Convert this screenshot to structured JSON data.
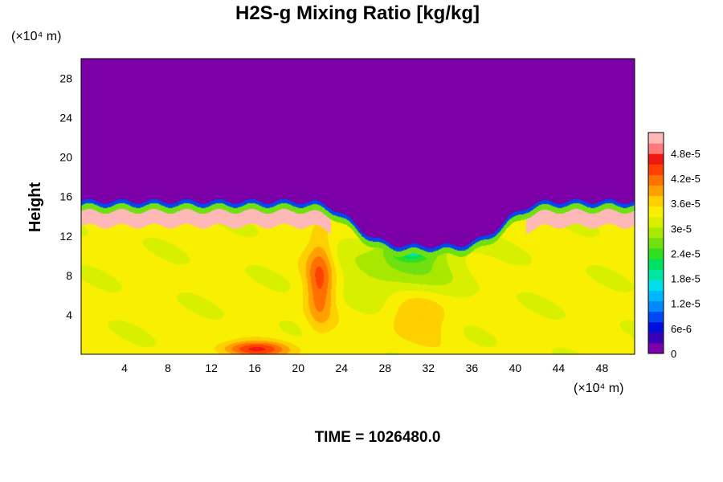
{
  "chart_data": {
    "type": "heatmap",
    "title": "H2S-g Mixing Ratio [kg/kg]",
    "ylabel": "Height",
    "x_unit_label": "(×10⁴ m)",
    "y_unit_label": "(×10⁴ m)",
    "xlim": [
      0,
      51
    ],
    "ylim": [
      0,
      30
    ],
    "x_ticks": [
      4,
      8,
      12,
      16,
      20,
      24,
      28,
      32,
      36,
      40,
      44,
      48
    ],
    "y_ticks": [
      4,
      8,
      12,
      16,
      20,
      24,
      28
    ],
    "colorbar": {
      "range": [
        0,
        5.3e-05
      ],
      "tick_values": [
        0,
        6e-06,
        1.2e-05,
        1.8e-05,
        2.4e-05,
        3e-05,
        3.6e-05,
        4.2e-05,
        4.8e-05
      ],
      "tick_labels": [
        "0",
        "6e-6",
        "1.2e-5",
        "1.8e-5",
        "2.4e-5",
        "3e-5",
        "3.6e-5",
        "4.2e-5",
        "4.8e-5"
      ],
      "colors": [
        "#7b00a8",
        "#3a00b8",
        "#0010d8",
        "#0048f0",
        "#0088ff",
        "#00b8ff",
        "#00e0e8",
        "#00e8a0",
        "#00e060",
        "#30e020",
        "#70e010",
        "#a8e800",
        "#d8f000",
        "#f8f000",
        "#ffd000",
        "#ffa000",
        "#ff7000",
        "#ff4000",
        "#f01810",
        "#ff7a7a",
        "#ffb8b8"
      ]
    },
    "field_description": {
      "upper_layer_value": 0,
      "surface_layer_top_height": 15.5,
      "dip_center_x": 32,
      "dip_bottom_height": 11
    },
    "footer": "TIME = 1026480.0"
  }
}
